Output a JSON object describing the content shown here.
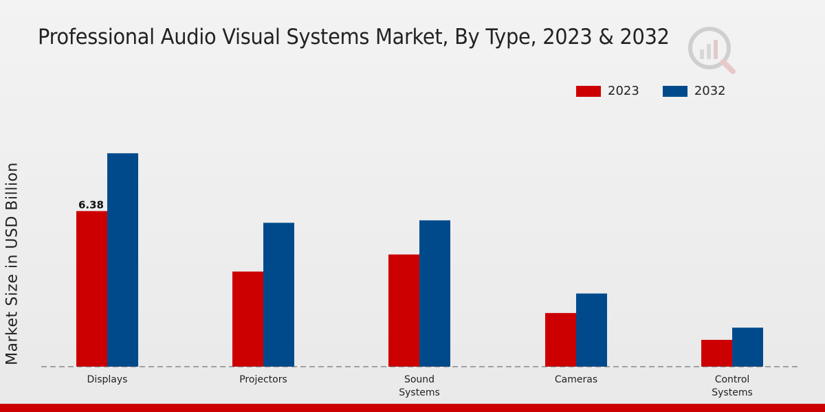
{
  "chart_data": {
    "type": "bar",
    "title": "Professional Audio Visual Systems Market, By Type, 2023 & 2032",
    "ylabel": "Market Size in USD Billion",
    "xlabel": "",
    "categories": [
      [
        "Displays"
      ],
      [
        "Projectors"
      ],
      [
        "Sound",
        "Systems"
      ],
      [
        "Cameras"
      ],
      [
        "Control",
        "Systems"
      ]
    ],
    "series": [
      {
        "name": "2023",
        "color": "#cc0000",
        "values": [
          6.38,
          3.9,
          4.6,
          2.2,
          1.1
        ]
      },
      {
        "name": "2032",
        "color": "#004a8c",
        "values": [
          8.75,
          5.9,
          6.0,
          3.0,
          1.6
        ]
      }
    ],
    "data_labels": [
      {
        "series": "2023",
        "category_index": 0,
        "text": "6.38"
      }
    ],
    "ylim": [
      0,
      12.5
    ],
    "grid": false,
    "legend_position": "top-right"
  }
}
